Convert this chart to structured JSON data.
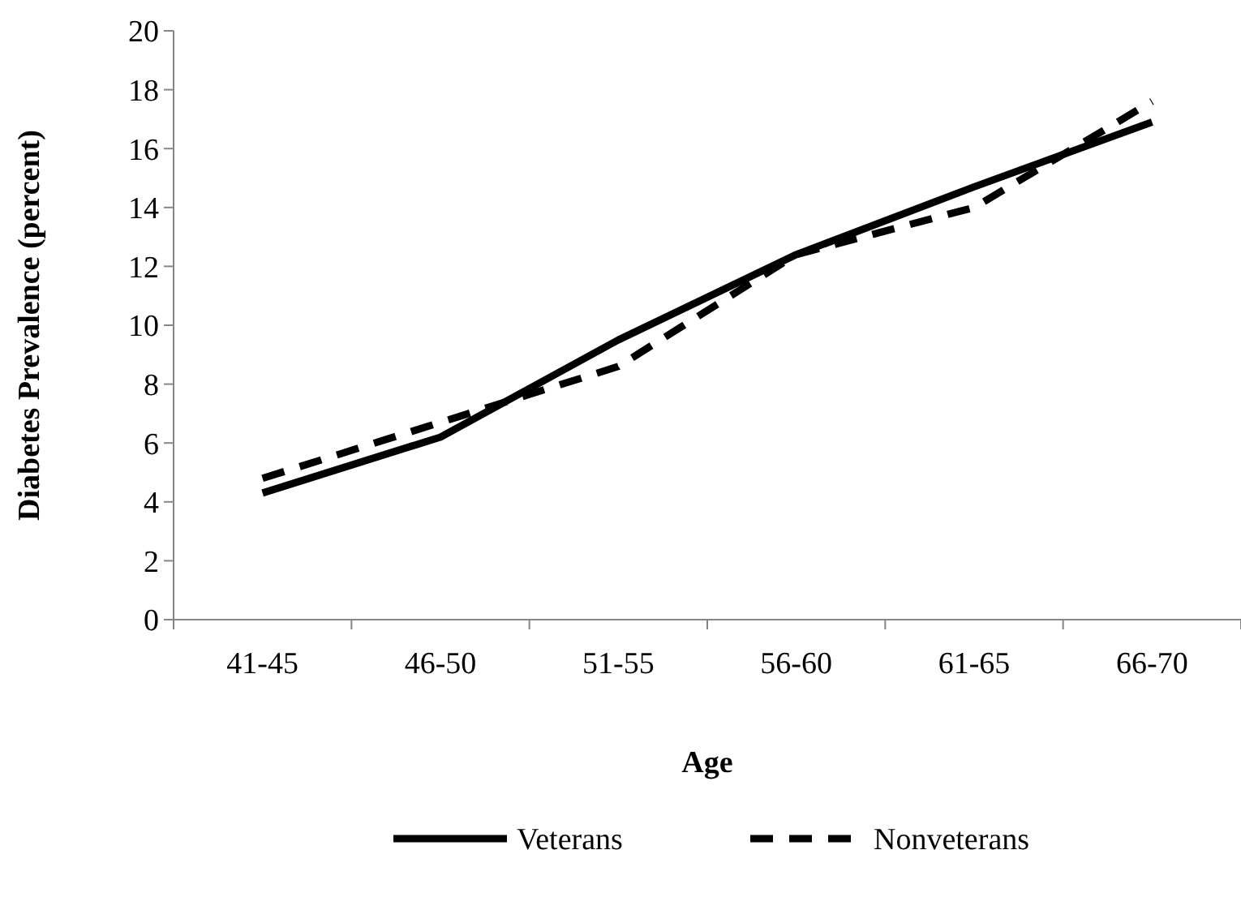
{
  "chart_data": {
    "type": "line",
    "xlabel": "Age",
    "ylabel": "Diabetes Prevalence (percent)",
    "categories": [
      "41-45",
      "46-50",
      "51-55",
      "56-60",
      "61-65",
      "66-70"
    ],
    "series": [
      {
        "name": "Veterans",
        "color": "#000000",
        "values": [
          4.3,
          6.2,
          9.5,
          12.4,
          14.7,
          16.9
        ],
        "line_style": "solid"
      },
      {
        "name": "Nonveterans",
        "color": "#000000",
        "values": [
          4.8,
          6.7,
          8.6,
          12.4,
          14.0,
          17.6
        ],
        "line_style": "dashed"
      }
    ],
    "ylim": [
      0,
      20
    ],
    "yticks": [
      0,
      2,
      4,
      6,
      8,
      10,
      12,
      14,
      16,
      18,
      20
    ],
    "grid": false,
    "legend": "bottom",
    "marker": "none"
  }
}
